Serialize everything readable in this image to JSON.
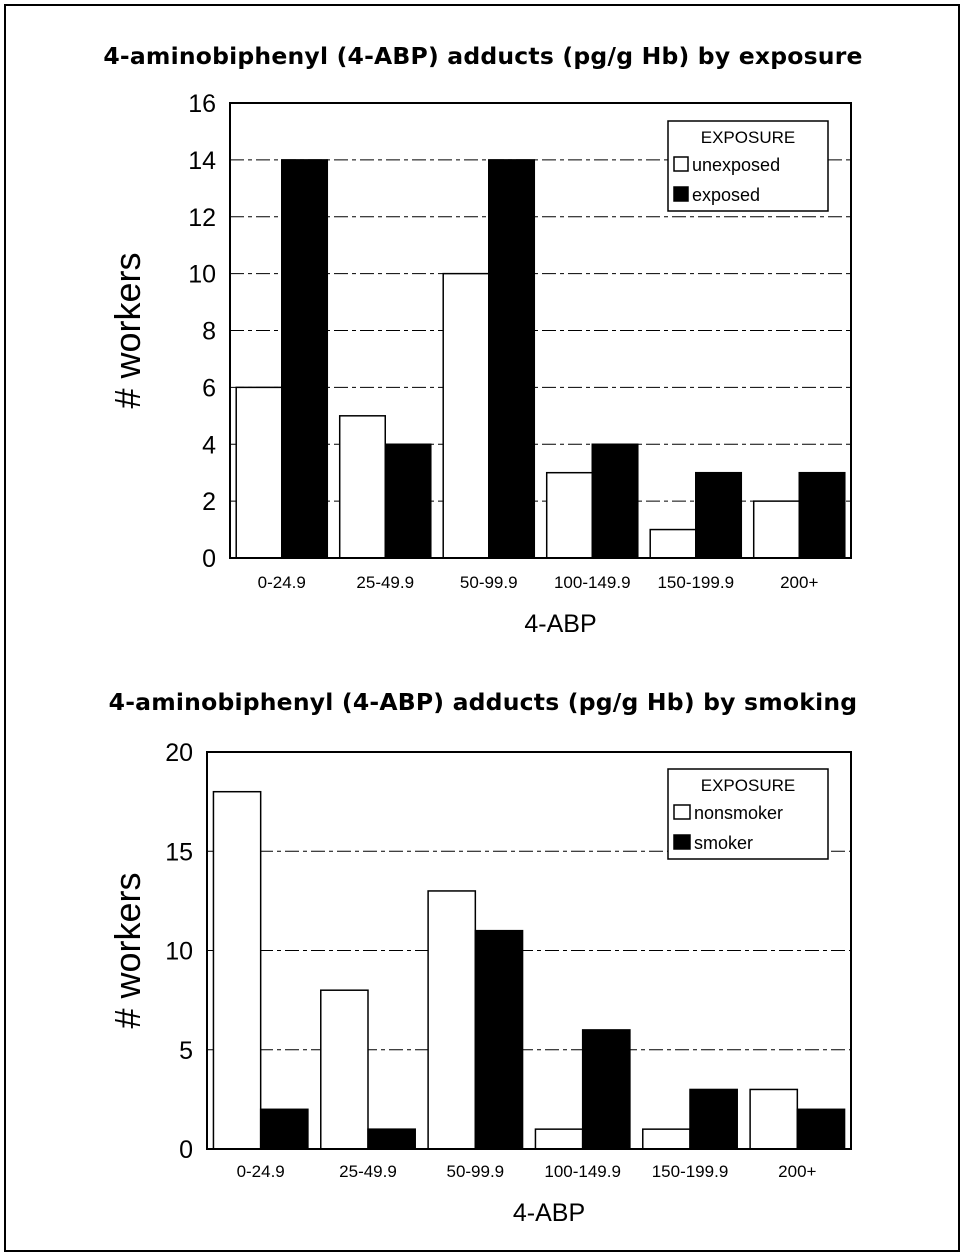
{
  "chart_data": [
    {
      "type": "bar",
      "title": "4-aminobiphenyl (4-ABP) adducts (pg/g Hb) by exposure",
      "xlabel": "4-ABP",
      "ylabel": "# workers",
      "categories": [
        "0-24.9",
        "25-49.9",
        "50-99.9",
        "100-149.9",
        "150-199.9",
        "200+"
      ],
      "series": [
        {
          "name": "unexposed",
          "color": "#ffffff",
          "values": [
            6,
            5,
            10,
            3,
            1,
            2
          ]
        },
        {
          "name": "exposed",
          "color": "#000000",
          "values": [
            14,
            4,
            14,
            4,
            3,
            3
          ]
        }
      ],
      "ylim": [
        0,
        16
      ],
      "yticks": [
        0,
        2,
        4,
        6,
        8,
        10,
        12,
        14,
        16
      ],
      "grid": "horizontal dashed",
      "legend": {
        "title": "EXPOSURE",
        "position": "top-right"
      }
    },
    {
      "type": "bar",
      "title": "4-aminobiphenyl (4-ABP) adducts (pg/g Hb) by smoking",
      "xlabel": "4-ABP",
      "ylabel": "# workers",
      "categories": [
        "0-24.9",
        "25-49.9",
        "50-99.9",
        "100-149.9",
        "150-199.9",
        "200+"
      ],
      "series": [
        {
          "name": "nonsmoker",
          "color": "#ffffff",
          "values": [
            18,
            8,
            13,
            1,
            1,
            3
          ]
        },
        {
          "name": "smoker",
          "color": "#000000",
          "values": [
            2,
            1,
            11,
            6,
            3,
            2
          ]
        }
      ],
      "ylim": [
        0,
        20
      ],
      "yticks": [
        0,
        5,
        10,
        15,
        20
      ],
      "grid": "horizontal dashed",
      "legend": {
        "title": "EXPOSURE",
        "position": "top-right"
      }
    }
  ]
}
